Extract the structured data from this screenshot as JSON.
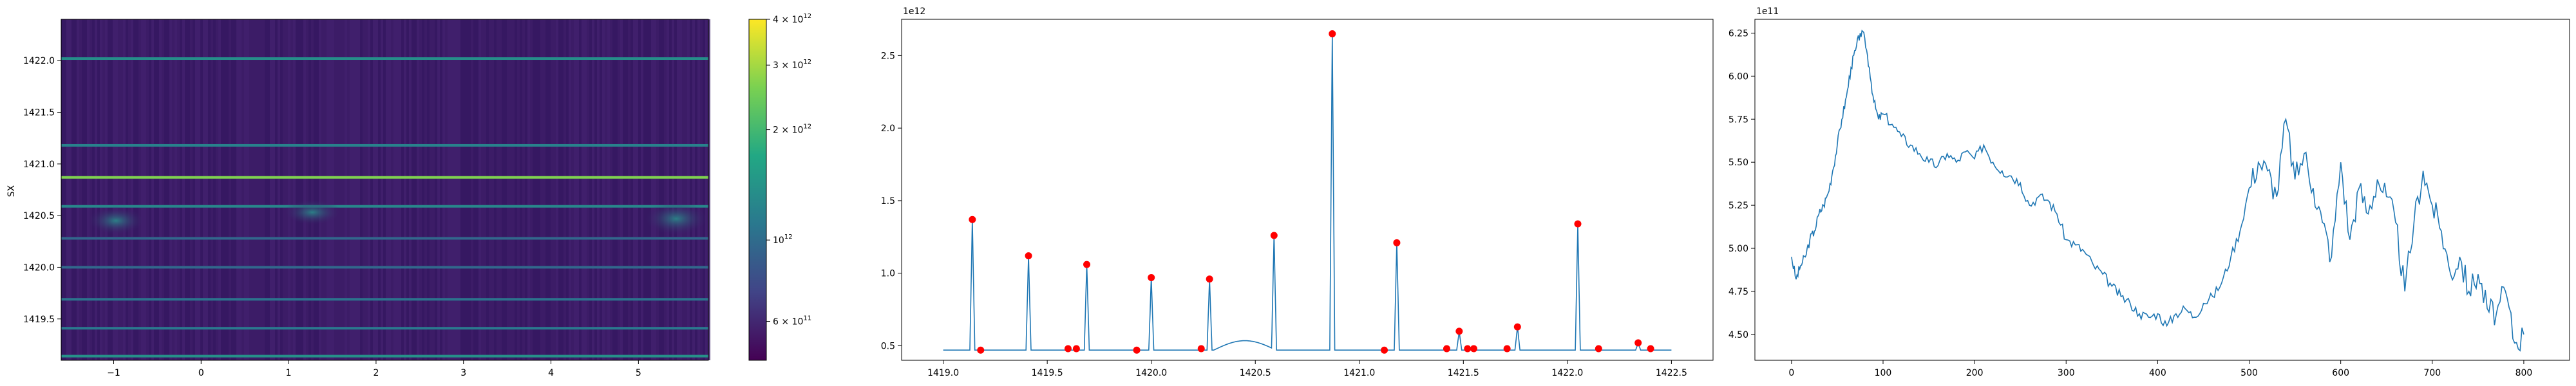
{
  "figure": {
    "panel1": {
      "ylabel": "SX",
      "xticks": [
        "−1",
        "0",
        "1",
        "2",
        "3",
        "4",
        "5"
      ],
      "yticks": [
        "1419.5",
        "1420.0",
        "1420.5",
        "1421.0",
        "1421.5",
        "1422.0"
      ]
    },
    "colorbar": {
      "ticks": [
        {
          "base": "6 × 10",
          "exp": "11"
        },
        {
          "base": "10",
          "exp": "12"
        },
        {
          "base": "2 × 10",
          "exp": "12"
        },
        {
          "base": "3 × 10",
          "exp": "12"
        },
        {
          "base": "4 × 10",
          "exp": "12"
        }
      ]
    },
    "panel2": {
      "offset": "1e12",
      "xticks": [
        "1419.0",
        "1419.5",
        "1420.0",
        "1420.5",
        "1421.0",
        "1421.5",
        "1422.0",
        "1422.5"
      ],
      "yticks": [
        "0.5",
        "1.0",
        "1.5",
        "2.0",
        "2.5"
      ]
    },
    "panel3": {
      "offset": "1e11",
      "xticks": [
        "0",
        "100",
        "200",
        "300",
        "400",
        "500",
        "600",
        "700",
        "800"
      ],
      "yticks": [
        "4.50",
        "4.75",
        "5.00",
        "5.25",
        "5.50",
        "5.75",
        "6.00",
        "6.25"
      ]
    }
  },
  "colors": {
    "line": "#1f77b4",
    "peaks": "#ff0000",
    "heat_bg": "#3b1a66",
    "heat_line": "#2a9d8f",
    "heat_top": "#e8e419"
  },
  "chart_data": [
    {
      "type": "heatmap",
      "ylabel": "SX",
      "xlim": [
        -1.6,
        5.8
      ],
      "ylim": [
        1419.1,
        1422.4
      ],
      "colorbar": {
        "scale": "log",
        "min": 470000000000.0,
        "max": 4000000000000.0,
        "colormap": "viridis"
      },
      "bright_rows": [
        {
          "y": 1422.02,
          "value": 1340000000000.0
        },
        {
          "y": 1421.18,
          "value": 1210000000000.0
        },
        {
          "y": 1420.87,
          "value": 2650000000000.0
        },
        {
          "y": 1420.59,
          "value": 1260000000000.0
        },
        {
          "y": 1420.28,
          "value": 960000000000.0
        },
        {
          "y": 1420.0,
          "value": 970000000000.0
        },
        {
          "y": 1419.69,
          "value": 1060000000000.0
        },
        {
          "y": 1419.41,
          "value": 1120000000000.0
        },
        {
          "y": 1419.14,
          "value": 1370000000000.0
        }
      ]
    },
    {
      "type": "line",
      "xlim": [
        1418.8,
        1422.7
      ],
      "ylim": [
        0.4,
        2.75
      ],
      "y_multiplier": "1e12",
      "baseline": 0.47,
      "peaks": [
        {
          "x": 1419.14,
          "y": 1.37
        },
        {
          "x": 1419.41,
          "y": 1.12
        },
        {
          "x": 1419.69,
          "y": 1.06
        },
        {
          "x": 1420.0,
          "y": 0.97
        },
        {
          "x": 1420.28,
          "y": 0.96
        },
        {
          "x": 1420.59,
          "y": 1.26
        },
        {
          "x": 1420.87,
          "y": 2.65
        },
        {
          "x": 1421.18,
          "y": 1.21
        },
        {
          "x": 1421.48,
          "y": 0.6
        },
        {
          "x": 1421.76,
          "y": 0.63
        },
        {
          "x": 1422.05,
          "y": 1.34
        },
        {
          "x": 1422.34,
          "y": 0.52
        }
      ],
      "markers": [
        {
          "x": 1419.14,
          "y": 1.37
        },
        {
          "x": 1419.18,
          "y": 0.47
        },
        {
          "x": 1419.41,
          "y": 1.12
        },
        {
          "x": 1419.6,
          "y": 0.48
        },
        {
          "x": 1419.64,
          "y": 0.48
        },
        {
          "x": 1419.69,
          "y": 1.06
        },
        {
          "x": 1419.93,
          "y": 0.47
        },
        {
          "x": 1420.0,
          "y": 0.97
        },
        {
          "x": 1420.24,
          "y": 0.48
        },
        {
          "x": 1420.28,
          "y": 0.96
        },
        {
          "x": 1420.59,
          "y": 1.26
        },
        {
          "x": 1420.87,
          "y": 2.65
        },
        {
          "x": 1421.12,
          "y": 0.47
        },
        {
          "x": 1421.18,
          "y": 1.21
        },
        {
          "x": 1421.42,
          "y": 0.48
        },
        {
          "x": 1421.48,
          "y": 0.6
        },
        {
          "x": 1421.52,
          "y": 0.48
        },
        {
          "x": 1421.55,
          "y": 0.48
        },
        {
          "x": 1421.71,
          "y": 0.48
        },
        {
          "x": 1421.76,
          "y": 0.63
        },
        {
          "x": 1422.05,
          "y": 1.34
        },
        {
          "x": 1422.15,
          "y": 0.48
        },
        {
          "x": 1422.34,
          "y": 0.52
        },
        {
          "x": 1422.4,
          "y": 0.48
        }
      ]
    },
    {
      "type": "line",
      "xlim": [
        -40,
        850
      ],
      "ylim": [
        4.35,
        6.33
      ],
      "y_multiplier": "1e11",
      "points": [
        [
          0,
          4.95
        ],
        [
          5,
          4.82
        ],
        [
          10,
          4.9
        ],
        [
          15,
          4.95
        ],
        [
          20,
          5.05
        ],
        [
          25,
          5.1
        ],
        [
          30,
          5.2
        ],
        [
          35,
          5.25
        ],
        [
          40,
          5.32
        ],
        [
          45,
          5.45
        ],
        [
          50,
          5.6
        ],
        [
          55,
          5.75
        ],
        [
          60,
          5.88
        ],
        [
          65,
          6.05
        ],
        [
          70,
          6.15
        ],
        [
          75,
          6.25
        ],
        [
          80,
          6.22
        ],
        [
          85,
          6.05
        ],
        [
          90,
          5.85
        ],
        [
          95,
          5.75
        ],
        [
          100,
          5.78
        ],
        [
          110,
          5.72
        ],
        [
          120,
          5.65
        ],
        [
          130,
          5.6
        ],
        [
          140,
          5.55
        ],
        [
          150,
          5.5
        ],
        [
          160,
          5.48
        ],
        [
          170,
          5.55
        ],
        [
          180,
          5.5
        ],
        [
          190,
          5.56
        ],
        [
          200,
          5.52
        ],
        [
          210,
          5.6
        ],
        [
          220,
          5.5
        ],
        [
          230,
          5.45
        ],
        [
          240,
          5.42
        ],
        [
          250,
          5.38
        ],
        [
          260,
          5.25
        ],
        [
          270,
          5.3
        ],
        [
          280,
          5.28
        ],
        [
          290,
          5.2
        ],
        [
          300,
          5.05
        ],
        [
          310,
          5.02
        ],
        [
          320,
          4.98
        ],
        [
          330,
          4.9
        ],
        [
          340,
          4.85
        ],
        [
          350,
          4.78
        ],
        [
          360,
          4.72
        ],
        [
          370,
          4.68
        ],
        [
          380,
          4.62
        ],
        [
          390,
          4.6
        ],
        [
          400,
          4.62
        ],
        [
          410,
          4.55
        ],
        [
          420,
          4.62
        ],
        [
          430,
          4.65
        ],
        [
          440,
          4.6
        ],
        [
          450,
          4.68
        ],
        [
          460,
          4.72
        ],
        [
          470,
          4.8
        ],
        [
          480,
          4.95
        ],
        [
          490,
          5.1
        ],
        [
          500,
          5.35
        ],
        [
          510,
          5.5
        ],
        [
          520,
          5.45
        ],
        [
          530,
          5.3
        ],
        [
          540,
          5.75
        ],
        [
          550,
          5.4
        ],
        [
          560,
          5.55
        ],
        [
          570,
          5.35
        ],
        [
          580,
          5.15
        ],
        [
          590,
          4.95
        ],
        [
          600,
          5.5
        ],
        [
          610,
          5.05
        ],
        [
          620,
          5.35
        ],
        [
          630,
          5.2
        ],
        [
          640,
          5.4
        ],
        [
          650,
          5.3
        ],
        [
          660,
          5.15
        ],
        [
          670,
          4.75
        ],
        [
          680,
          5.15
        ],
        [
          690,
          5.45
        ],
        [
          700,
          5.25
        ],
        [
          710,
          5.1
        ],
        [
          720,
          4.85
        ],
        [
          730,
          4.95
        ],
        [
          740,
          4.75
        ],
        [
          750,
          4.85
        ],
        [
          760,
          4.65
        ],
        [
          770,
          4.62
        ],
        [
          780,
          4.75
        ],
        [
          790,
          4.45
        ],
        [
          800,
          4.5
        ]
      ]
    }
  ]
}
